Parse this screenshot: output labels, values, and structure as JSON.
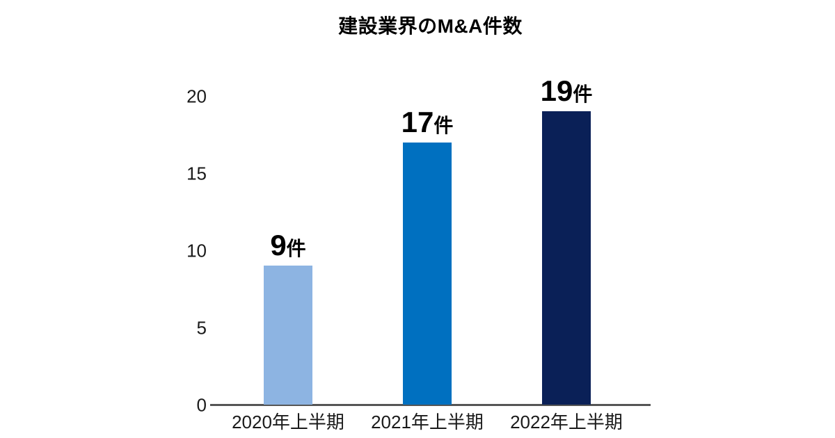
{
  "page": {
    "background_color": "#FFFFFF"
  },
  "chart_data": {
    "type": "bar",
    "title": "建設業界のM&A件数",
    "categories": [
      "2020年上半期",
      "2021年上半期",
      "2022年上半期"
    ],
    "values": [
      9,
      17,
      19
    ],
    "value_suffix": "件",
    "value_labels": [
      "9件",
      "17件",
      "19件"
    ],
    "bar_colors": [
      "#8DB4E2",
      "#0070C0",
      "#0A2057"
    ],
    "xlabel": "",
    "ylabel": "",
    "ylim": [
      0,
      20
    ],
    "yticks": [
      0,
      5,
      10,
      15,
      20
    ],
    "grid": false,
    "legend": "none",
    "axis_line_color": "#555555",
    "title_color": "#000000",
    "tick_label_color": "#1a1a1a",
    "value_label_color": "#000000"
  }
}
